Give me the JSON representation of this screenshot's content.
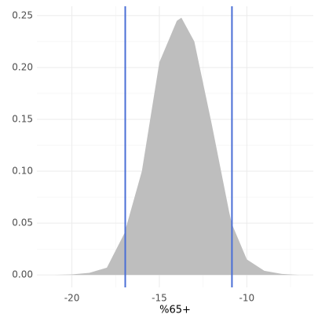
{
  "chart_data": {
    "type": "area",
    "x_label": "%65+",
    "x": [
      -21,
      -20,
      -19,
      -18,
      -17,
      -16,
      -15,
      -14,
      -13.74,
      -13,
      -12,
      -11,
      -10.85,
      -10,
      -9,
      -8,
      -7
    ],
    "values": [
      0,
      0.0005,
      0.002,
      0.007,
      0.04,
      0.1,
      0.205,
      0.245,
      0.248,
      0.225,
      0.145,
      0.06,
      0.049,
      0.015,
      0.004,
      0.001,
      0
    ],
    "color": "#bebebe",
    "vlines": [
      -16.95,
      -10.85
    ],
    "vline_color": "#4a6fd6",
    "xlim": [
      -22,
      -6.2
    ],
    "ylim": [
      -0.012,
      0.259
    ],
    "xticks": [
      -20,
      -15,
      -10
    ],
    "yticks": [
      {
        "value": 0,
        "label": "0.00"
      },
      {
        "value": 0.05,
        "label": "0.05"
      },
      {
        "value": 0.1,
        "label": "0.10"
      },
      {
        "value": 0.15,
        "label": "0.15"
      },
      {
        "value": 0.2,
        "label": "0.20"
      },
      {
        "value": 0.25,
        "label": "0.25"
      }
    ],
    "grid": true
  }
}
